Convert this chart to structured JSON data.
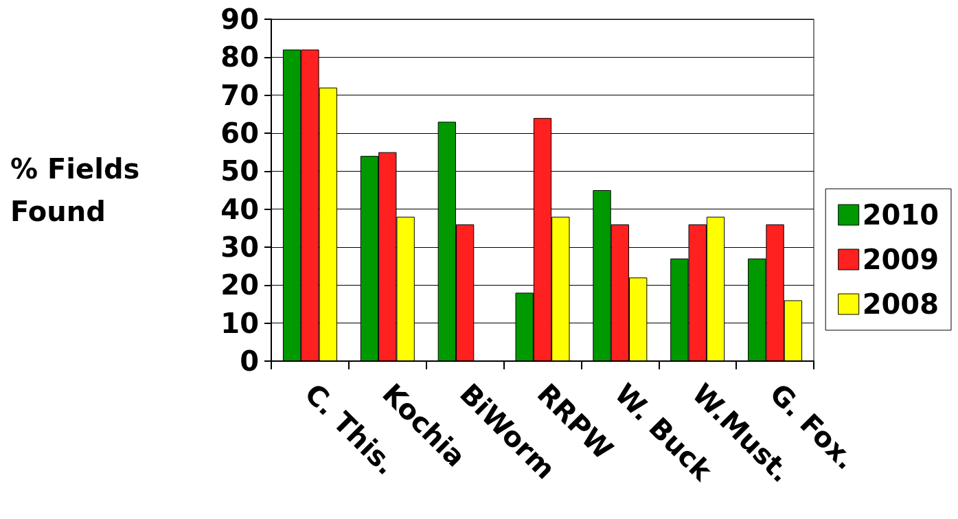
{
  "chart_data": {
    "type": "bar",
    "ylabel": "% Fields Found",
    "categories": [
      "C. This.",
      "Kochia",
      "BiWorm",
      "RRPW",
      "W. Buck",
      "W.Must.",
      "G. Fox."
    ],
    "series": [
      {
        "name": "2010",
        "color": "#009900",
        "values": [
          82,
          54,
          63,
          18,
          45,
          27,
          27
        ]
      },
      {
        "name": "2009",
        "color": "#ff2020",
        "values": [
          82,
          55,
          36,
          64,
          36,
          36,
          36
        ]
      },
      {
        "name": "2008",
        "color": "#ffff00",
        "values": [
          72,
          38,
          null,
          38,
          22,
          38,
          16
        ]
      }
    ],
    "ylim": [
      0,
      90
    ],
    "yticks": [
      0,
      10,
      20,
      30,
      40,
      50,
      60,
      70,
      80,
      90
    ],
    "grid": "y",
    "legend": "right"
  }
}
